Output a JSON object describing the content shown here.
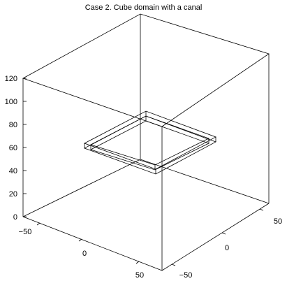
{
  "title": "Case 2. Cube domain with a canal",
  "axes": {
    "z_ticks": [
      "0",
      "20",
      "40",
      "60",
      "80",
      "100",
      "120"
    ],
    "x_ticks": [
      "−50",
      "0",
      "50"
    ],
    "y_ticks": [
      "−50",
      "0",
      "50"
    ],
    "z_range": [
      0,
      120
    ],
    "x_range": [
      -60,
      60
    ],
    "y_range": [
      -60,
      60
    ],
    "box": true,
    "grid": false
  },
  "canal": {
    "level_z": 60,
    "outer_half_width": 30,
    "inner_half_width": 26,
    "depth": 5
  },
  "colors": {
    "lines": "#000000",
    "background": "#ffffff"
  }
}
